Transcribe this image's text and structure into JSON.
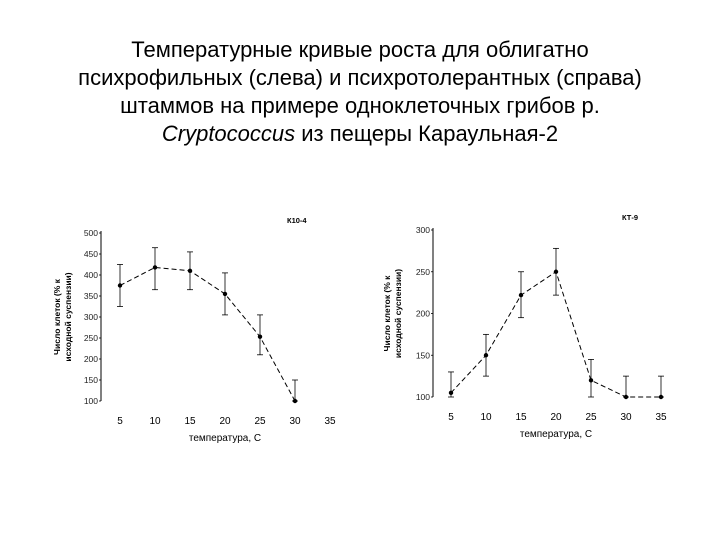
{
  "title": {
    "line1": "Температурные кривые роста для облигатно",
    "line2": "психрофильных (слева) и психротолерантных (справа)",
    "line3": "штаммов на примере одноклеточных грибов р.",
    "line4_italic": "Cryptococcus",
    "line4_rest": " из пещеры Караульная-2"
  },
  "chart_data": [
    {
      "type": "line",
      "strain_label": "К10-4",
      "xlabel": "температура, С",
      "ylabel_line1": "Число клеток (% к",
      "ylabel_line2": "исходной суспензии)",
      "x_ticks": [
        "5",
        "10",
        "15",
        "20",
        "25",
        "30",
        "35"
      ],
      "y_ticks": [
        "500",
        "450",
        "400",
        "350",
        "300",
        "250",
        "200",
        "150",
        "100"
      ],
      "ylim": [
        100,
        500
      ],
      "x": [
        5,
        10,
        15,
        20,
        25,
        30
      ],
      "y": [
        375,
        418,
        410,
        355,
        253,
        100
      ],
      "err_low": [
        325,
        365,
        365,
        305,
        210,
        100
      ],
      "err_high": [
        425,
        465,
        455,
        405,
        305,
        150
      ],
      "grid": false
    },
    {
      "type": "line",
      "strain_label": "КТ-9",
      "xlabel": "температура, С",
      "ylabel_line1": "Число клеток (% к",
      "ylabel_line2": "исходной суспензии)",
      "x_ticks": [
        "5",
        "10",
        "15",
        "20",
        "25",
        "30",
        "35"
      ],
      "y_ticks": [
        "300",
        "250",
        "200",
        "150",
        "100"
      ],
      "ylim": [
        100,
        300
      ],
      "x": [
        5,
        10,
        15,
        20,
        25,
        30,
        35
      ],
      "y": [
        105,
        150,
        222,
        250,
        120,
        100,
        100
      ],
      "err_low": [
        100,
        125,
        195,
        222,
        100,
        100,
        100
      ],
      "err_high": [
        130,
        175,
        250,
        278,
        145,
        125,
        125
      ],
      "grid": false
    }
  ]
}
